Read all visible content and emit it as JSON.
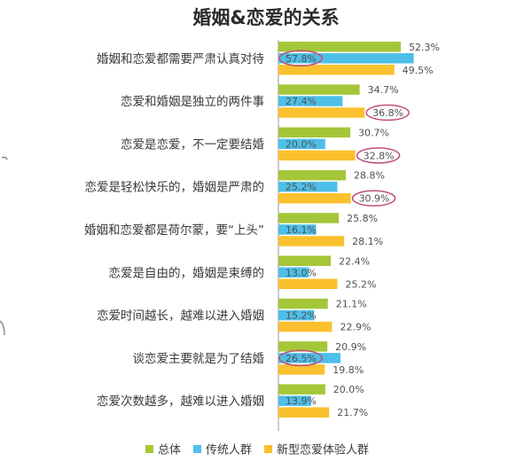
{
  "chart_data": {
    "type": "bar",
    "orientation": "horizontal",
    "title": "婚姻&恋爱的关系",
    "categories": [
      "婚姻和恋爱都需要严肃认真对待",
      "恋爱和婚姻是独立的两件事",
      "恋爱是恋爱，不一定要结婚",
      "恋爱是轻松快乐的，婚姻是严肃的",
      "婚姻和恋爱都是荷尔蒙，要“上头”",
      "恋爱是自由的，婚姻是束缚的",
      "恋爱时间越长，越难以进入婚姻",
      "谈恋爱主要就是为了结婚",
      "恋爱次数越多，越难以进入婚姻"
    ],
    "series": [
      {
        "name": "总体",
        "color": "#a4c639",
        "values": [
          52.3,
          34.7,
          30.7,
          28.8,
          25.8,
          22.4,
          21.1,
          20.9,
          20.0
        ],
        "labels": [
          "52.3%",
          "34.7%",
          "30.7%",
          "28.8%",
          "25.8%",
          "22.4%",
          "21.1%",
          "20.9%",
          "20.0%"
        ]
      },
      {
        "name": "传统人群",
        "color": "#4dbfe8",
        "values": [
          57.8,
          27.4,
          20.0,
          25.2,
          16.1,
          13.0,
          15.2,
          26.5,
          13.9
        ],
        "labels": [
          "57.8%",
          "27.4%",
          "20.0%",
          "25.2%",
          "16.1%",
          "13.0%",
          "15.2%",
          "26.5%",
          "13.9%"
        ]
      },
      {
        "name": "新型恋爱体验人群",
        "color": "#fbc02d",
        "values": [
          49.5,
          36.8,
          32.8,
          30.9,
          28.1,
          25.2,
          22.9,
          19.8,
          21.7
        ],
        "labels": [
          "49.5%",
          "36.8%",
          "32.8%",
          "30.9%",
          "28.1%",
          "25.2%",
          "22.9%",
          "19.8%",
          "21.7%"
        ]
      }
    ],
    "highlighted": [
      {
        "series": 1,
        "category": 0
      },
      {
        "series": 2,
        "category": 1
      },
      {
        "series": 2,
        "category": 2
      },
      {
        "series": 2,
        "category": 3
      },
      {
        "series": 1,
        "category": 7
      }
    ],
    "highlight_color": "#c0507a",
    "value_suffix": "%",
    "legend_position": "bottom",
    "grid": false
  }
}
